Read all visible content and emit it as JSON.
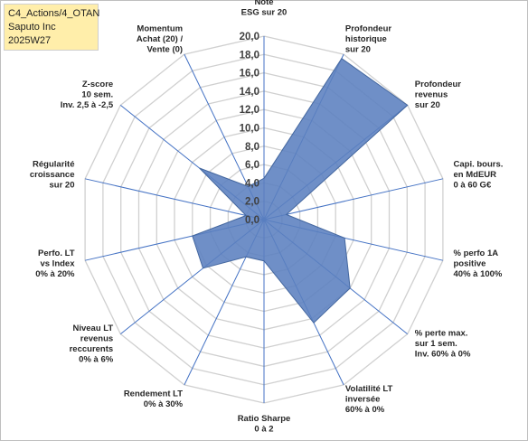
{
  "header": {
    "line1": "C4_Actions/4_OTAN",
    "line2": "Saputo Inc",
    "line3": "2025W27"
  },
  "chart_data": {
    "type": "radar",
    "rmin": 0,
    "rmax": 20,
    "tick_step": 2,
    "ticks": [
      "0,0",
      "2,0",
      "4,0",
      "6,0",
      "8,0",
      "10,0",
      "12,0",
      "14,0",
      "16,0",
      "18,0",
      "20,0"
    ],
    "series_color": "#5b7fbf",
    "axes": [
      {
        "label": [
          "Note",
          "ESG sur 20"
        ],
        "value": 4.5
      },
      {
        "label": [
          "Profondeur",
          "historique",
          "sur 20"
        ],
        "value": 19.5
      },
      {
        "label": [
          "Profondeur",
          "revenus",
          "sur 20"
        ],
        "value": 20.0
      },
      {
        "label": [
          "Capi. bours.",
          "en MdEUR",
          "0 à 60 G€"
        ],
        "value": 2.5
      },
      {
        "label": [
          "% perfo 1A",
          "positive",
          "40% à 100%"
        ],
        "value": 9.0
      },
      {
        "label": [
          "% perte max.",
          "sur 1 sem.",
          "Inv. 60% à 0%"
        ],
        "value": 12.0
      },
      {
        "label": [
          "Volatilité LT",
          "inversée",
          "60% à 0%"
        ],
        "value": 12.5
      },
      {
        "label": [
          "Ratio Sharpe",
          "0 à 2"
        ],
        "value": 4.5
      },
      {
        "label": [
          "Rendement LT",
          "0% à 30%"
        ],
        "value": 4.5
      },
      {
        "label": [
          "Niveau LT",
          "revenus",
          "reccurents",
          "0% à 6%"
        ],
        "value": 8.5
      },
      {
        "label": [
          "Perfo. LT",
          "vs Index",
          "0% à 20%"
        ],
        "value": 8.0
      },
      {
        "label": [
          "Régularité",
          "croissance",
          "sur 20"
        ],
        "value": 2.0
      },
      {
        "label": [
          "Z-score",
          "10 sem.",
          "Inv. 2,5 à -2,5"
        ],
        "value": 9.0
      },
      {
        "label": [
          "Momentum",
          "Achat (20) /",
          "Vente (0)"
        ],
        "value": 4.0
      }
    ]
  }
}
